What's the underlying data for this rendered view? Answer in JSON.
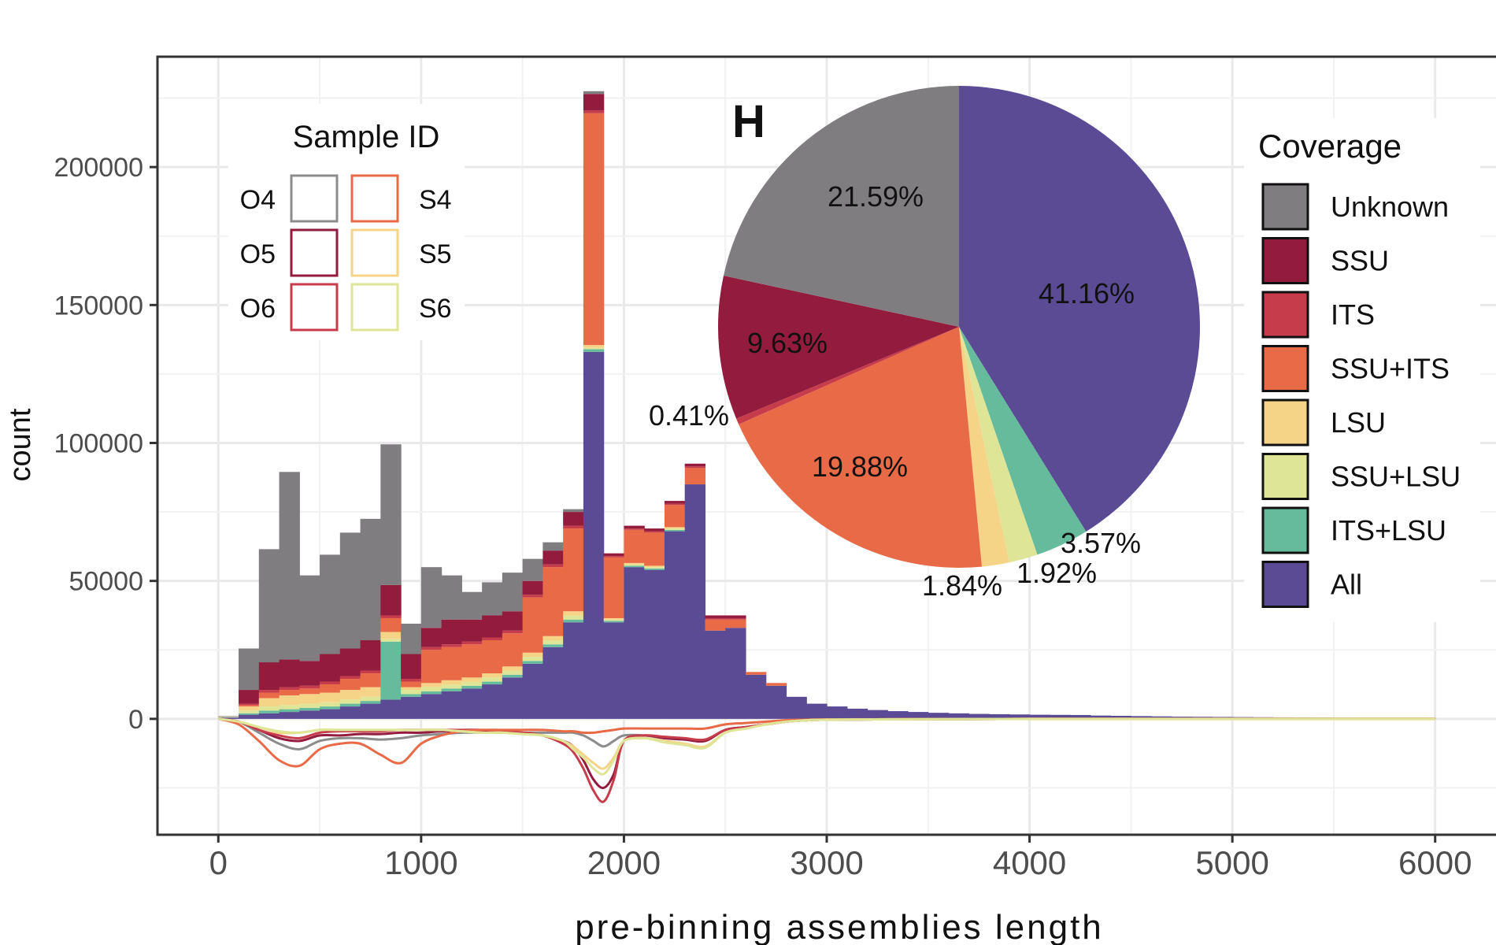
{
  "chart_data": [
    {
      "type": "bar",
      "stacked": true,
      "xlabel": "pre-binning assemblies length",
      "ylabel": "count",
      "xlim": [
        -300,
        6300
      ],
      "ylim": [
        -42000,
        240000
      ],
      "xticks": [
        0,
        1000,
        2000,
        3000,
        4000,
        5000,
        6000
      ],
      "yticks": [
        0,
        50000,
        100000,
        150000,
        200000
      ],
      "grid": true,
      "bin_width": 100,
      "x": [
        50,
        150,
        250,
        350,
        450,
        550,
        650,
        750,
        850,
        950,
        1050,
        1150,
        1250,
        1350,
        1450,
        1550,
        1650,
        1750,
        1850,
        1950,
        2050,
        2150,
        2250,
        2350,
        2450,
        2550,
        2650,
        2750,
        2850,
        2950,
        3050,
        3150,
        3250,
        3350,
        3450,
        3550,
        3650,
        3750,
        3850,
        3950,
        4050,
        4150,
        4250,
        4350,
        4450,
        4550,
        4650,
        4750,
        4850,
        4950,
        5050,
        5150,
        5250,
        5350,
        5450,
        5550,
        5650,
        5750,
        5850,
        5950
      ],
      "series": [
        {
          "name": "All",
          "color": "#5b4b95",
          "values": [
            500,
            1500,
            2000,
            2500,
            3000,
            3500,
            4500,
            5500,
            7000,
            8000,
            9000,
            10000,
            11000,
            12500,
            15000,
            20000,
            26000,
            35000,
            133000,
            35000,
            55000,
            54000,
            68000,
            85000,
            32000,
            33000,
            16000,
            12000,
            8000,
            5500,
            4500,
            3700,
            3200,
            2800,
            2500,
            2200,
            2000,
            1800,
            1700,
            1600,
            1500,
            1450,
            1400,
            1200,
            1100,
            1000,
            900,
            800,
            750,
            700,
            650,
            600,
            550,
            500,
            450,
            400,
            380,
            360,
            340,
            320
          ]
        },
        {
          "name": "ITS+LSU",
          "color": "#66bb9c",
          "values": [
            100,
            500,
            1000,
            1000,
            1000,
            1000,
            1000,
            1000,
            21000,
            1000,
            1000,
            1000,
            1000,
            1000,
            1000,
            1000,
            1000,
            1000,
            1000,
            500,
            500,
            500,
            500,
            0,
            0,
            0,
            0,
            0,
            0,
            0,
            0,
            0,
            0,
            0,
            0,
            0,
            0,
            0,
            0,
            0,
            0,
            0,
            0,
            0,
            0,
            0,
            0,
            0,
            0,
            0,
            0,
            0,
            0,
            0,
            0,
            0,
            0,
            0,
            0,
            0
          ]
        },
        {
          "name": "SSU+LSU",
          "color": "#dfe597",
          "values": [
            100,
            1000,
            1500,
            1500,
            1500,
            1500,
            1500,
            1500,
            1000,
            1500,
            1500,
            1500,
            1500,
            1500,
            1500,
            1500,
            1500,
            1500,
            500,
            500,
            500,
            500,
            500,
            0,
            0,
            0,
            0,
            0,
            0,
            0,
            0,
            0,
            0,
            0,
            0,
            0,
            0,
            0,
            0,
            0,
            0,
            0,
            0,
            0,
            0,
            0,
            0,
            0,
            0,
            0,
            0,
            0,
            0,
            0,
            0,
            0,
            0,
            0,
            0,
            0
          ]
        },
        {
          "name": "LSU",
          "color": "#f6d487",
          "values": [
            100,
            1500,
            3000,
            3500,
            3500,
            3500,
            3500,
            3500,
            2500,
            1000,
            1500,
            1500,
            1500,
            1500,
            1500,
            1500,
            1500,
            1500,
            1000,
            500,
            500,
            500,
            500,
            0,
            0,
            0,
            0,
            0,
            0,
            0,
            0,
            0,
            0,
            0,
            0,
            0,
            0,
            0,
            0,
            0,
            0,
            0,
            0,
            0,
            0,
            0,
            0,
            0,
            0,
            0,
            0,
            0,
            0,
            0,
            0,
            0,
            0,
            0,
            0,
            0
          ]
        },
        {
          "name": "SSU+ITS",
          "color": "#e86a47",
          "values": [
            0,
            500,
            2000,
            2000,
            2000,
            3000,
            4000,
            5000,
            5000,
            2000,
            12000,
            12000,
            12000,
            12000,
            12000,
            20000,
            25000,
            30000,
            84000,
            22000,
            12000,
            12000,
            8000,
            6000,
            4000,
            3000,
            1000,
            1000,
            0,
            0,
            0,
            0,
            0,
            0,
            0,
            0,
            0,
            0,
            0,
            0,
            0,
            0,
            0,
            0,
            0,
            0,
            0,
            0,
            0,
            0,
            0,
            0,
            0,
            0,
            0,
            0,
            0,
            0,
            0,
            0
          ]
        },
        {
          "name": "ITS",
          "color": "#c73c4b",
          "values": [
            0,
            500,
            1000,
            1000,
            1000,
            1000,
            1000,
            1000,
            1000,
            1000,
            1000,
            1000,
            1000,
            1000,
            1000,
            1000,
            1000,
            1000,
            1000,
            500,
            500,
            500,
            500,
            500,
            500,
            500,
            0,
            0,
            0,
            0,
            0,
            0,
            0,
            0,
            0,
            0,
            0,
            0,
            0,
            0,
            0,
            0,
            0,
            0,
            0,
            0,
            0,
            0,
            0,
            0,
            0,
            0,
            0,
            0,
            0,
            0,
            0,
            0,
            0,
            0
          ]
        },
        {
          "name": "SSU",
          "color": "#931c3e",
          "values": [
            0,
            5000,
            10000,
            10000,
            9000,
            10000,
            10000,
            11000,
            11000,
            9000,
            7000,
            9000,
            8000,
            8000,
            7000,
            5000,
            5000,
            5000,
            6000,
            1000,
            1000,
            1000,
            1000,
            1000,
            1000,
            1000,
            0,
            0,
            0,
            0,
            0,
            0,
            0,
            0,
            0,
            0,
            0,
            0,
            0,
            0,
            0,
            0,
            0,
            0,
            0,
            0,
            0,
            0,
            0,
            0,
            0,
            0,
            0,
            0,
            0,
            0,
            0,
            0,
            0,
            0
          ]
        },
        {
          "name": "Unknown",
          "color": "#807d80",
          "values": [
            200,
            15000,
            41000,
            68000,
            31000,
            36000,
            42000,
            44000,
            51000,
            11000,
            22000,
            16000,
            10000,
            12000,
            14000,
            8000,
            3000,
            1000,
            1000,
            0,
            0,
            0,
            0,
            0,
            0,
            0,
            0,
            0,
            0,
            0,
            0,
            0,
            0,
            0,
            0,
            0,
            0,
            0,
            0,
            0,
            0,
            0,
            0,
            0,
            0,
            0,
            0,
            0,
            0,
            0,
            0,
            0,
            0,
            0,
            0,
            0,
            0,
            0,
            0,
            0
          ]
        }
      ],
      "density": {
        "x": [
          0,
          100,
          200,
          300,
          400,
          500,
          600,
          700,
          800,
          900,
          1000,
          1100,
          1200,
          1300,
          1400,
          1500,
          1600,
          1700,
          1750,
          1800,
          1850,
          1900,
          1950,
          2000,
          2100,
          2200,
          2300,
          2400,
          2500,
          2600,
          2700,
          2800,
          2900,
          3000,
          3500,
          4000,
          4500,
          5000,
          5500,
          6000
        ],
        "series": [
          {
            "name": "O4",
            "color": "#8c8c8c",
            "values": [
              0,
              -1000,
              -5000,
              -9000,
              -11000,
              -8000,
              -7000,
              -7000,
              -7500,
              -7000,
              -6000,
              -5500,
              -5000,
              -5000,
              -5000,
              -5000,
              -5000,
              -5000,
              -5000,
              -6000,
              -8000,
              -10000,
              -8000,
              -6000,
              -6000,
              -7000,
              -7500,
              -8000,
              -4000,
              -3000,
              -2000,
              -1000,
              -500,
              -300,
              -100,
              0,
              0,
              0,
              0,
              0
            ]
          },
          {
            "name": "O5",
            "color": "#931c3e",
            "values": [
              0,
              -1000,
              -4000,
              -7000,
              -8000,
              -6000,
              -6000,
              -5500,
              -5500,
              -5000,
              -5000,
              -4500,
              -4500,
              -4500,
              -5000,
              -5000,
              -6000,
              -8000,
              -10000,
              -15000,
              -22000,
              -25000,
              -20000,
              -8000,
              -6000,
              -7000,
              -7500,
              -8000,
              -4000,
              -3000,
              -2000,
              -1000,
              -500,
              -300,
              -100,
              0,
              0,
              0,
              0,
              0
            ]
          },
          {
            "name": "O6",
            "color": "#c73c4b",
            "values": [
              0,
              -1000,
              -4000,
              -6000,
              -7000,
              -5000,
              -4500,
              -4500,
              -4500,
              -4000,
              -4000,
              -4000,
              -4000,
              -4000,
              -4500,
              -5000,
              -6000,
              -9000,
              -12000,
              -18000,
              -26000,
              -30000,
              -22000,
              -8000,
              -6000,
              -6500,
              -7000,
              -7500,
              -4000,
              -3000,
              -2000,
              -1000,
              -500,
              -300,
              -100,
              0,
              0,
              0,
              0,
              0
            ]
          },
          {
            "name": "S4",
            "color": "#e86a47",
            "values": [
              0,
              -2000,
              -8000,
              -15000,
              -17000,
              -11000,
              -9000,
              -9000,
              -13000,
              -16000,
              -9000,
              -6000,
              -4500,
              -4000,
              -4000,
              -4000,
              -4000,
              -4500,
              -4500,
              -5000,
              -5000,
              -4500,
              -4000,
              -3500,
              -3500,
              -3500,
              -3500,
              -3500,
              -2000,
              -1500,
              -1000,
              -500,
              -300,
              -200,
              -100,
              0,
              0,
              0,
              0,
              0
            ]
          },
          {
            "name": "S5",
            "color": "#f6d487",
            "values": [
              0,
              -1000,
              -3000,
              -5000,
              -5000,
              -4000,
              -4000,
              -4000,
              -4000,
              -4000,
              -4000,
              -4000,
              -4500,
              -5000,
              -5000,
              -5500,
              -6000,
              -8000,
              -10000,
              -13000,
              -16000,
              -18000,
              -14000,
              -8000,
              -7000,
              -8000,
              -9000,
              -10000,
              -5000,
              -3500,
              -2000,
              -1000,
              -500,
              -300,
              -100,
              0,
              0,
              0,
              0,
              0
            ]
          },
          {
            "name": "S6",
            "color": "#dfe597",
            "values": [
              0,
              -1000,
              -3000,
              -4500,
              -5000,
              -4000,
              -4000,
              -4000,
              -4000,
              -4000,
              -4000,
              -4000,
              -4500,
              -5000,
              -5000,
              -5500,
              -6000,
              -8000,
              -11000,
              -14000,
              -18000,
              -20000,
              -15000,
              -8000,
              -7000,
              -8500,
              -9500,
              -10500,
              -5000,
              -3500,
              -2000,
              -1000,
              -500,
              -300,
              -100,
              0,
              0,
              0,
              0,
              0
            ]
          }
        ]
      }
    },
    {
      "type": "pie",
      "title": "H",
      "legend_title": "Coverage",
      "legend_position": "right",
      "slices": [
        {
          "label": "All",
          "value": 41.16,
          "text": "41.16%",
          "color": "#5b4b95"
        },
        {
          "label": "ITS+LSU",
          "value": 3.57,
          "text": "3.57%",
          "color": "#66bb9c"
        },
        {
          "label": "SSU+LSU",
          "value": 1.92,
          "text": "1.92%",
          "color": "#dfe597"
        },
        {
          "label": "LSU",
          "value": 1.84,
          "text": "1.84%",
          "color": "#f6d487"
        },
        {
          "label": "SSU+ITS",
          "value": 19.88,
          "text": "19.88%",
          "color": "#e86a47"
        },
        {
          "label": "ITS",
          "value": 0.41,
          "text": "0.41%",
          "color": "#c73c4b"
        },
        {
          "label": "SSU",
          "value": 9.63,
          "text": "9.63%",
          "color": "#931c3e"
        },
        {
          "label": "Unknown",
          "value": 21.59,
          "text": "21.59%",
          "color": "#807d80"
        }
      ]
    }
  ],
  "legends": {
    "sample": {
      "title": "Sample ID",
      "items": [
        {
          "label": "O4",
          "color": "#8c8c8c"
        },
        {
          "label": "O5",
          "color": "#931c3e"
        },
        {
          "label": "O6",
          "color": "#c73c4b"
        },
        {
          "label": "S4",
          "color": "#e86a47"
        },
        {
          "label": "S5",
          "color": "#f6d487"
        },
        {
          "label": "S6",
          "color": "#dfe597"
        }
      ]
    },
    "coverage": {
      "title": "Coverage",
      "items": [
        {
          "label": "Unknown",
          "color": "#807d80"
        },
        {
          "label": "SSU",
          "color": "#931c3e"
        },
        {
          "label": "ITS",
          "color": "#c73c4b"
        },
        {
          "label": "SSU+ITS",
          "color": "#e86a47"
        },
        {
          "label": "LSU",
          "color": "#f6d487"
        },
        {
          "label": "SSU+LSU",
          "color": "#dfe597"
        },
        {
          "label": "ITS+LSU",
          "color": "#66bb9c"
        },
        {
          "label": "All",
          "color": "#5b4b95"
        }
      ]
    }
  }
}
